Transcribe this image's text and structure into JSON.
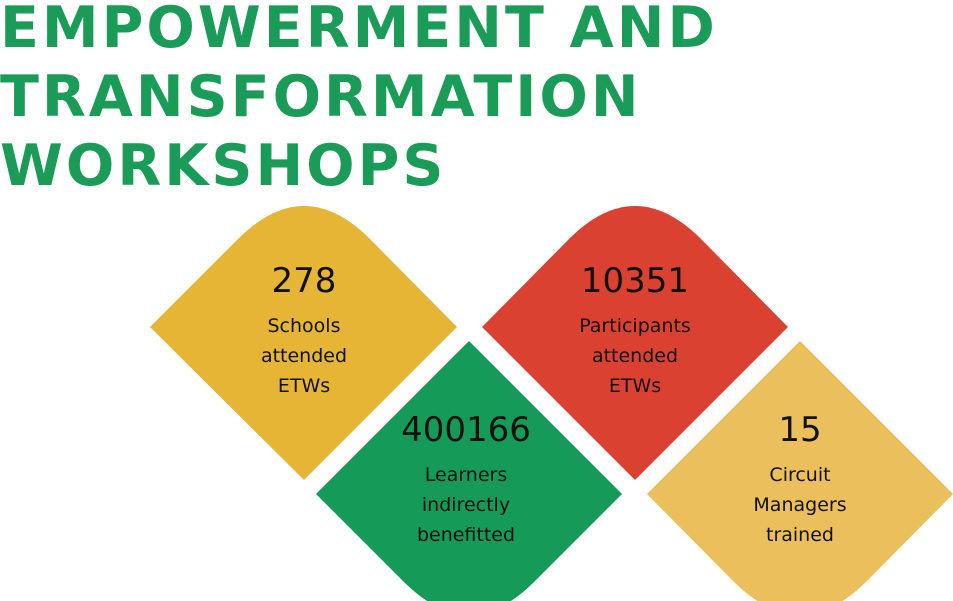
{
  "title": {
    "line1": "EMPOWERMENT AND",
    "line2": "TRANSFORMATION",
    "line3": "WORKSHOPS"
  },
  "colors": {
    "title": "#1a9b58",
    "schools": "#e6b535",
    "participants": "#db4131",
    "learners": "#169a57",
    "managers": "#ebc05c"
  },
  "stats": {
    "schools": {
      "value": "278",
      "label": [
        "Schools",
        "attended",
        "ETWs"
      ]
    },
    "participants": {
      "value": "10351",
      "label": [
        "Participants",
        "attended",
        "ETWs"
      ]
    },
    "learners": {
      "value": "400166",
      "label": [
        "Learners",
        "indirectly",
        "benefitted"
      ]
    },
    "managers": {
      "value": "15",
      "label": [
        "Circuit",
        "Managers",
        "trained"
      ]
    }
  }
}
